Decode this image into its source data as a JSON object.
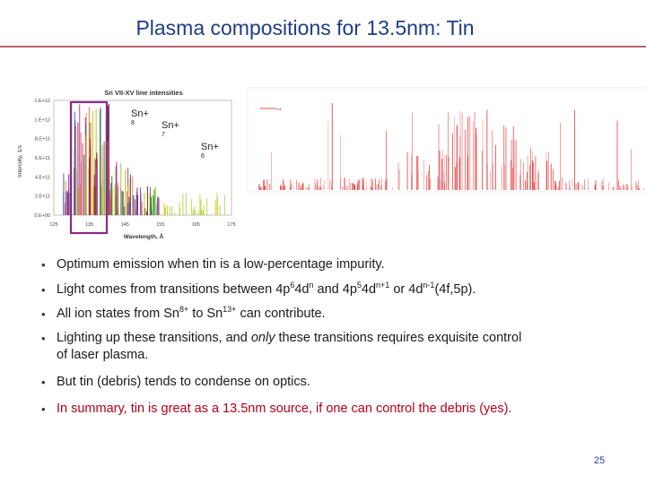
{
  "slide": {
    "title": "Plasma compositions for 13.5nm: Tin",
    "page_number": "25"
  },
  "figure": {
    "left_chart": {
      "title": "Sn VII-XV line intensities",
      "ylabel": "Intensity, 1/s",
      "xlabel": "Wavelength, Å",
      "y_ticks": [
        "1.E+12",
        "1.E+12",
        "8.E+11",
        "6.E+11",
        "4.E+11",
        "2.E+11",
        "0.E+00"
      ],
      "x_ticks": [
        "125",
        "135",
        "145",
        "155",
        "165",
        "175"
      ],
      "ion_labels": [
        {
          "text": "Sn+",
          "sub": "8"
        },
        {
          "text": "Sn+",
          "sub": "7"
        },
        {
          "text": "Sn+",
          "sub": "6"
        }
      ],
      "highlight_color": "#8b2a8b"
    },
    "right_chart": {
      "legend_text": "1",
      "line_color": "#e01010"
    }
  },
  "bullets": {
    "b1": "Optimum emission when tin is a low-percentage impurity.",
    "b2_a": "Light comes from transitions between 4p",
    "b2_sup1": "6",
    "b2_b": "4d",
    "b2_sup2": "n",
    "b2_c": " and 4p",
    "b2_sup3": "5",
    "b2_d": "4d",
    "b2_sup4": "n+1",
    "b2_e": " or 4d",
    "b2_sup5": "n-1",
    "b2_f": "(4f,5p).",
    "b3_a": "All ion states from Sn",
    "b3_sup1": "8+",
    "b3_b": " to Sn",
    "b3_sup2": "13+",
    "b3_c": " can contribute.",
    "b4_a": "Lighting up these transitions, and ",
    "b4_em": "only",
    "b4_b": " these transitions requires exquisite control",
    "b4_c": "of laser plasma.",
    "b5": "But tin (debris) tends to condense on optics.",
    "b6": "In summary, tin is great as a 13.5nm source, if one can control the debris (yes)."
  }
}
